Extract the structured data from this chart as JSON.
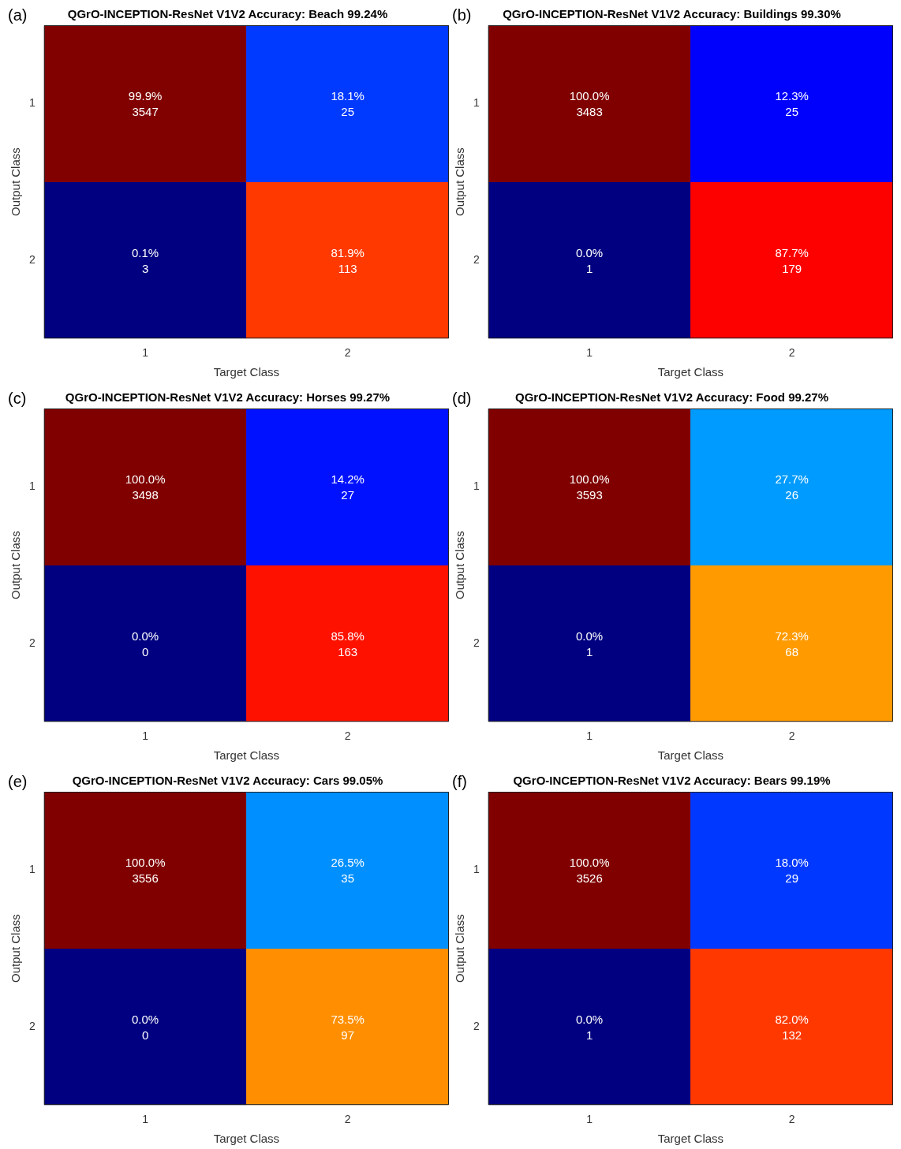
{
  "chart_data": [
    {
      "type": "heatmap",
      "title": "QGrO-INCEPTION-ResNet V1V2 Accuracy: Beach 99.24%",
      "xlabel": "Target Class",
      "ylabel": "Output Class",
      "categories": [
        "1",
        "2"
      ],
      "y_categories": [
        "1",
        "2"
      ],
      "cells": [
        [
          99.9,
          18.1
        ],
        [
          0.1,
          81.9
        ]
      ],
      "cell_labels": [
        [
          "99.9%",
          "18.1%"
        ],
        [
          "0.1%",
          "81.9%"
        ]
      ],
      "annotations": [
        "(a)",
        "3547",
        "25",
        "3",
        "113"
      ]
    },
    {
      "type": "heatmap",
      "title": "QGrO-INCEPTION-ResNet V1V2 Accuracy: Buildings 99.30%",
      "xlabel": "Target Class",
      "ylabel": "Output Class",
      "categories": [
        "1",
        "2"
      ],
      "y_categories": [
        "1",
        "2"
      ],
      "cells": [
        [
          100.0,
          12.3
        ],
        [
          0.0,
          87.7
        ]
      ],
      "cell_labels": [
        [
          "100.0%",
          "12.3%"
        ],
        [
          "0.0%",
          "87.7%"
        ]
      ],
      "annotations": [
        "(b)",
        "3483",
        "25",
        "1",
        "179"
      ]
    },
    {
      "type": "heatmap",
      "title": "QGrO-INCEPTION-ResNet V1V2 Accuracy: Horses 99.27%",
      "xlabel": "Target Class",
      "ylabel": "Output Class",
      "categories": [
        "1",
        "2"
      ],
      "y_categories": [
        "1",
        "2"
      ],
      "cells": [
        [
          100.0,
          14.2
        ],
        [
          0.0,
          85.8
        ]
      ],
      "cell_labels": [
        [
          "100.0%",
          "14.2%"
        ],
        [
          "0.0%",
          "85.8%"
        ]
      ],
      "annotations": [
        "(c)",
        "3498",
        "27",
        "0",
        "163"
      ]
    },
    {
      "type": "heatmap",
      "title": "QGrO-INCEPTION-ResNet V1V2 Accuracy: Food 99.27%",
      "xlabel": "Target Class",
      "ylabel": "Output Class",
      "categories": [
        "1",
        "2"
      ],
      "y_categories": [
        "1",
        "2"
      ],
      "cells": [
        [
          100.0,
          27.7
        ],
        [
          0.0,
          72.3
        ]
      ],
      "cell_labels": [
        [
          "100.0%",
          "27.7%"
        ],
        [
          "0.0%",
          "72.3%"
        ]
      ],
      "annotations": [
        "(d)",
        "3593",
        "26",
        "1",
        "68"
      ]
    },
    {
      "type": "heatmap",
      "title": "QGrO-INCEPTION-ResNet V1V2 Accuracy: Cars 99.05%",
      "xlabel": "Target Class",
      "ylabel": "Output Class",
      "categories": [
        "1",
        "2"
      ],
      "y_categories": [
        "1",
        "2"
      ],
      "cells": [
        [
          100.0,
          26.5
        ],
        [
          0.0,
          73.5
        ]
      ],
      "cell_labels": [
        [
          "100.0%",
          "26.5%"
        ],
        [
          "0.0%",
          "73.5%"
        ]
      ],
      "annotations": [
        "(e)",
        "3556",
        "35",
        "0",
        "97"
      ]
    },
    {
      "type": "heatmap",
      "title": "QGrO-INCEPTION-ResNet V1V2 Accuracy: Bears 99.19%",
      "xlabel": "Target Class",
      "ylabel": "Output Class",
      "categories": [
        "1",
        "2"
      ],
      "y_categories": [
        "1",
        "2"
      ],
      "cells": [
        [
          100.0,
          18.0
        ],
        [
          0.0,
          82.0
        ]
      ],
      "cell_labels": [
        [
          "100.0%",
          "18.0%"
        ],
        [
          "0.0%",
          "82.0%"
        ]
      ],
      "annotations": [
        "(f)",
        "3526",
        "29",
        "1",
        "132"
      ]
    }
  ]
}
